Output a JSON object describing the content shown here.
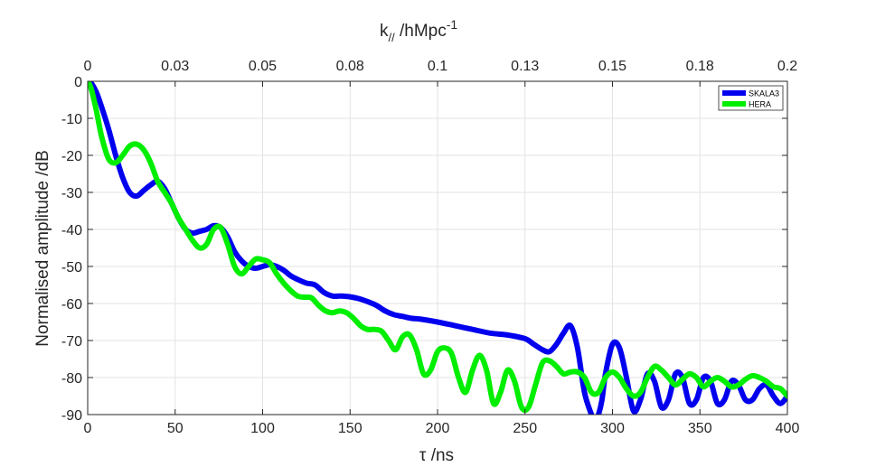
{
  "chart_data": {
    "type": "line",
    "xlabel": "τ /ns",
    "ylabel": "Normalised amplitude /dB",
    "top_xlabel": {
      "base": "k",
      "subscript": "//",
      "mid": " /hMpc",
      "superscript": "-1"
    },
    "xlim": [
      0,
      400
    ],
    "ylim": [
      -90,
      0
    ],
    "x_ticks": [
      0,
      50,
      100,
      150,
      200,
      250,
      300,
      350,
      400
    ],
    "x_tick_labels": [
      "0",
      "50",
      "100",
      "150",
      "200",
      "250",
      "300",
      "350",
      "400"
    ],
    "y_ticks": [
      0,
      -10,
      -20,
      -30,
      -40,
      -50,
      -60,
      -70,
      -80,
      -90
    ],
    "y_tick_labels": [
      "0",
      "-10",
      "-20",
      "-30",
      "-40",
      "-50",
      "-60",
      "-70",
      "-80",
      "-90"
    ],
    "top_ticks_at_x": [
      0,
      50,
      100,
      150,
      200,
      250,
      300,
      350,
      400
    ],
    "top_tick_labels": [
      "0",
      "0.03",
      "0.05",
      "0.08",
      "0.1",
      "0.13",
      "0.15",
      "0.18",
      "0.2"
    ],
    "grid": true,
    "legend_position": "top-right",
    "series": [
      {
        "name": "SKALA3",
        "color": "#0000ee",
        "x": [
          0,
          2,
          5,
          8,
          12,
          16,
          20,
          24,
          28,
          32,
          36,
          40,
          44,
          48,
          52,
          56,
          60,
          64,
          68,
          72,
          76,
          80,
          84,
          88,
          92,
          96,
          100,
          104,
          108,
          112,
          116,
          120,
          125,
          130,
          135,
          140,
          145,
          150,
          155,
          160,
          165,
          170,
          175,
          180,
          185,
          190,
          200,
          210,
          220,
          230,
          240,
          250,
          255,
          260,
          264,
          268,
          272,
          276,
          280,
          284,
          288,
          290,
          292,
          294,
          296,
          300,
          304,
          308,
          312,
          316,
          320,
          324,
          328,
          332,
          336,
          340,
          344,
          348,
          352,
          356,
          360,
          364,
          368,
          372,
          376,
          380,
          384,
          388,
          392,
          396,
          400
        ],
        "values": [
          0,
          -0.5,
          -3,
          -7,
          -13,
          -20,
          -26,
          -30,
          -31,
          -29.5,
          -28,
          -27,
          -29,
          -33,
          -37,
          -40,
          -41,
          -40.5,
          -40,
          -39,
          -39.5,
          -42,
          -46,
          -48.5,
          -50,
          -50.5,
          -50,
          -49.5,
          -50,
          -51,
          -52.5,
          -53.5,
          -54.5,
          -55,
          -57,
          -58,
          -58,
          -58.2,
          -58.7,
          -59.5,
          -60.5,
          -62,
          -63,
          -63.5,
          -64,
          -64.2,
          -65,
          -66,
          -67,
          -68,
          -68.5,
          -69.5,
          -71,
          -72.5,
          -73,
          -71,
          -68,
          -66,
          -72,
          -84,
          -90,
          -92,
          -90,
          -86,
          -79,
          -71,
          -72,
          -80,
          -89,
          -86,
          -79,
          -81,
          -88,
          -86,
          -79,
          -80,
          -87,
          -86,
          -80,
          -81,
          -87,
          -86,
          -81,
          -82,
          -86,
          -86,
          -83,
          -82,
          -85,
          -87,
          -85
        ]
      },
      {
        "name": "HERA",
        "color": "#00ee00",
        "x": [
          0,
          2,
          5,
          8,
          12,
          16,
          20,
          24,
          28,
          32,
          36,
          40,
          44,
          48,
          52,
          56,
          60,
          64,
          68,
          72,
          76,
          80,
          84,
          88,
          92,
          96,
          100,
          104,
          108,
          112,
          116,
          120,
          124,
          128,
          132,
          136,
          140,
          144,
          148,
          152,
          156,
          160,
          164,
          168,
          172,
          176,
          180,
          184,
          188,
          192,
          196,
          200,
          204,
          208,
          212,
          216,
          220,
          224,
          228,
          232,
          236,
          240,
          244,
          248,
          252,
          256,
          260,
          264,
          268,
          272,
          276,
          280,
          284,
          288,
          292,
          296,
          300,
          304,
          308,
          312,
          316,
          320,
          324,
          328,
          332,
          336,
          340,
          344,
          348,
          352,
          356,
          360,
          364,
          368,
          372,
          376,
          380,
          384,
          388,
          392,
          396,
          400
        ],
        "values": [
          0,
          -2,
          -8,
          -15,
          -21,
          -22,
          -20,
          -17.5,
          -17,
          -18.5,
          -22,
          -27,
          -30,
          -33,
          -37,
          -40,
          -43,
          -45,
          -44,
          -40,
          -39.5,
          -44,
          -50,
          -52,
          -50,
          -48,
          -48.2,
          -49,
          -52,
          -54.5,
          -56.5,
          -58,
          -58.3,
          -58.5,
          -60.5,
          -62,
          -62.5,
          -62,
          -62.5,
          -64,
          -66,
          -67,
          -67,
          -67.5,
          -70,
          -72.5,
          -69,
          -68.5,
          -72.5,
          -79,
          -78,
          -73,
          -72,
          -73.5,
          -80,
          -84,
          -78,
          -74,
          -78,
          -87,
          -84,
          -78,
          -81,
          -88,
          -88,
          -82,
          -76,
          -75.5,
          -77,
          -79,
          -78.5,
          -78.5,
          -80,
          -84,
          -84,
          -80,
          -78.5,
          -80,
          -83,
          -85,
          -84,
          -80,
          -77,
          -78,
          -80,
          -82,
          -80.5,
          -79,
          -80,
          -82.5,
          -81,
          -80,
          -81,
          -82.5,
          -82,
          -80.5,
          -79.5,
          -80,
          -81,
          -82.5,
          -83,
          -85
        ]
      }
    ]
  }
}
